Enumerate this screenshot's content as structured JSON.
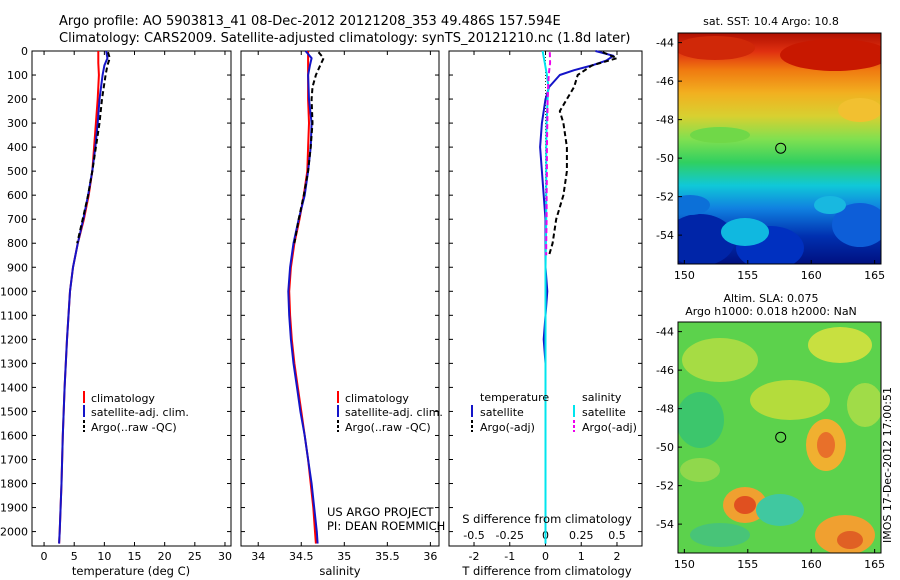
{
  "header": {
    "line1": "Argo profile: AO 5903813_41 08-Dec-2012 20121208_353 49.486S 157.594E",
    "line2": "Climatology: CARS2009. Satellite-adjusted climatology: synTS_20121210.nc (1.8d later)"
  },
  "credit": {
    "line1": "US ARGO PROJECT",
    "line2": "PI: DEAN ROEMMICH"
  },
  "imos_stamp": "IMOS 17-Dec-2012 17:00:51",
  "colors": {
    "climatology": "#ff0000",
    "satellite": "#1414c8",
    "argo": "#000000",
    "satellite_salinity": "#00e5ee",
    "argo_salinity": "#ee00ee"
  },
  "chart_data": [
    {
      "type": "line",
      "xlabel": "temperature (deg C)",
      "ylabel": "",
      "xlim": [
        -2,
        31
      ],
      "ylim": [
        2060,
        0
      ],
      "xticks": [
        0,
        5,
        10,
        15,
        20,
        25,
        30
      ],
      "yticks": [
        0,
        100,
        200,
        300,
        400,
        500,
        600,
        700,
        800,
        900,
        1000,
        1100,
        1200,
        1300,
        1400,
        1500,
        1600,
        1700,
        1800,
        1900,
        2000
      ],
      "legend": [
        "climatology",
        "satellite-adj. clim.",
        "Argo(..raw -QC)"
      ],
      "series": [
        {
          "name": "climatology",
          "color": "#ff0000",
          "depth": [
            0,
            50,
            100,
            200,
            300,
            400,
            500,
            600,
            700,
            800,
            900,
            1000,
            1200,
            1400,
            1600,
            1800,
            2000,
            2050
          ],
          "values": [
            9.0,
            9.0,
            9.1,
            8.9,
            8.6,
            8.3,
            8.0,
            7.4,
            6.6,
            5.6,
            4.8,
            4.3,
            3.8,
            3.4,
            3.1,
            2.9,
            2.6,
            2.5
          ]
        },
        {
          "name": "satellite-adj. clim.",
          "color": "#1414c8",
          "depth": [
            0,
            30,
            60,
            100,
            200,
            300,
            400,
            500,
            600,
            700,
            800,
            900,
            1000,
            1200,
            1400,
            1600,
            1800,
            2000,
            2050
          ],
          "values": [
            10.3,
            10.5,
            10.0,
            9.7,
            9.2,
            8.9,
            8.5,
            8.0,
            7.3,
            6.5,
            5.6,
            4.8,
            4.3,
            3.8,
            3.4,
            3.1,
            2.9,
            2.6,
            2.5
          ]
        },
        {
          "name": "Argo(..raw -QC)",
          "color": "#000000",
          "depth": [
            5,
            30,
            60,
            100,
            150,
            200,
            300,
            400,
            500,
            600,
            700,
            800
          ],
          "values": [
            10.6,
            10.9,
            10.5,
            10.2,
            9.9,
            9.6,
            9.2,
            8.6,
            8.0,
            7.3,
            6.4,
            5.5
          ]
        }
      ]
    },
    {
      "type": "line",
      "xlabel": "salinity",
      "ylabel": "",
      "xlim": [
        33.8,
        36.1
      ],
      "ylim": [
        2060,
        0
      ],
      "xticks": [
        34,
        34.5,
        35,
        35.5,
        36
      ],
      "legend": [
        "climatology",
        "satellite-adj. clim.",
        "Argo(..raw -QC)"
      ],
      "series": [
        {
          "name": "climatology",
          "color": "#ff0000",
          "depth": [
            0,
            100,
            200,
            300,
            400,
            500,
            600,
            700,
            800,
            900,
            1000,
            1100,
            1200,
            1300,
            1400,
            1500,
            1600,
            1700,
            1800,
            1900,
            2000,
            2050
          ],
          "values": [
            34.58,
            34.58,
            34.58,
            34.59,
            34.58,
            34.57,
            34.53,
            34.48,
            34.42,
            34.38,
            34.36,
            34.37,
            34.39,
            34.42,
            34.46,
            34.5,
            34.54,
            34.58,
            34.61,
            34.64,
            34.66,
            34.67
          ]
        },
        {
          "name": "satellite-adj. clim.",
          "color": "#1414c8",
          "depth": [
            0,
            30,
            60,
            100,
            200,
            300,
            400,
            500,
            600,
            700,
            800,
            900,
            1000,
            1100,
            1200,
            1300,
            1400,
            1500,
            1600,
            1700,
            1800,
            1900,
            2000,
            2050
          ],
          "values": [
            34.55,
            34.62,
            34.6,
            34.58,
            34.59,
            34.62,
            34.61,
            34.58,
            34.54,
            34.47,
            34.41,
            34.37,
            34.35,
            34.36,
            34.38,
            34.41,
            34.45,
            34.49,
            34.54,
            34.58,
            34.62,
            34.65,
            34.68,
            34.69
          ]
        },
        {
          "name": "Argo(..raw -QC)",
          "color": "#000000",
          "depth": [
            5,
            30,
            60,
            100,
            150,
            200,
            300,
            400,
            500,
            600,
            700,
            800
          ],
          "values": [
            34.7,
            34.76,
            34.72,
            34.67,
            34.63,
            34.62,
            34.63,
            34.61,
            34.58,
            34.53,
            34.47,
            34.42
          ]
        }
      ]
    },
    {
      "type": "line",
      "xlabel": "T difference from climatology",
      "xlabel_top": "S difference from climatology",
      "ylabel": "",
      "xlim": [
        -2.7,
        2.7
      ],
      "ylim": [
        2060,
        0
      ],
      "xticks": [
        -2,
        -1,
        0,
        1,
        2
      ],
      "xticks_top": [
        "-0.5",
        "-0.25",
        "0",
        "0.25",
        "0.5"
      ],
      "legend_headings": [
        "temperature",
        "salinity"
      ],
      "legend": [
        "satellite",
        "Argo(-adj)",
        "satellite",
        "Argo(-adj)"
      ],
      "series": [
        {
          "name": "satellite",
          "color": "#1414c8",
          "depth": [
            0,
            20,
            40,
            60,
            80,
            100,
            150,
            200,
            300,
            400,
            500,
            600,
            700,
            800,
            900,
            1000,
            1100,
            1200,
            1300,
            1400,
            1600,
            1800,
            2050
          ],
          "values": [
            1.4,
            1.9,
            1.7,
            1.3,
            0.8,
            0.4,
            0.1,
            0.0,
            -0.1,
            -0.15,
            -0.1,
            -0.05,
            0.0,
            0.0,
            0.0,
            0.05,
            0.0,
            -0.05,
            0.0,
            0.0,
            0.0,
            0.0,
            0.0
          ]
        },
        {
          "name": "Argo(-adj)",
          "color": "#000000",
          "depth": [
            5,
            30,
            60,
            100,
            150,
            200,
            250,
            300,
            400,
            500,
            600,
            700,
            800,
            850
          ],
          "values": [
            1.6,
            2.0,
            1.3,
            0.9,
            0.8,
            0.6,
            0.4,
            0.5,
            0.6,
            0.6,
            0.5,
            0.3,
            0.2,
            0.1
          ]
        },
        {
          "name": "satellite",
          "color": "#00e5ee",
          "depth": [
            0,
            50,
            100,
            150,
            200,
            300,
            400,
            500,
            600,
            700,
            800,
            900,
            1000,
            1200,
            1400,
            1600,
            1800,
            2050
          ],
          "values": [
            -0.08,
            -0.02,
            0.04,
            0.08,
            0.06,
            0.03,
            0.02,
            0.02,
            0.02,
            0.02,
            0.01,
            0.0,
            0.0,
            0.0,
            0.0,
            0.0,
            0.0,
            0.0
          ]
        },
        {
          "name": "Argo(-adj)",
          "color": "#ee00ee",
          "depth": [
            5,
            50,
            100,
            200,
            300,
            400,
            500,
            600,
            700,
            800,
            850
          ],
          "values": [
            0.12,
            0.13,
            0.09,
            0.06,
            0.05,
            0.04,
            0.04,
            0.03,
            0.03,
            0.02,
            0.02
          ]
        }
      ]
    },
    {
      "type": "heatmap",
      "title": "sat. SST: 10.4  Argo: 10.8",
      "xlim": [
        149.5,
        165.5
      ],
      "ylim": [
        -55.5,
        -43.5
      ],
      "xticks": [
        150,
        155,
        160,
        165
      ],
      "yticks": [
        -44,
        -46,
        -48,
        -50,
        -52,
        -54
      ],
      "marker": {
        "x": 157.594,
        "y": -49.486
      }
    },
    {
      "type": "heatmap",
      "title": "Altim. SLA: 0.075",
      "subtitle": "Argo h1000: 0.018  h2000: NaN",
      "xlim": [
        149.5,
        165.5
      ],
      "ylim": [
        -55.5,
        -43.5
      ],
      "xticks": [
        150,
        155,
        160,
        165
      ],
      "yticks": [
        -44,
        -46,
        -48,
        -50,
        -52,
        -54
      ],
      "marker": {
        "x": 157.594,
        "y": -49.486
      }
    }
  ]
}
